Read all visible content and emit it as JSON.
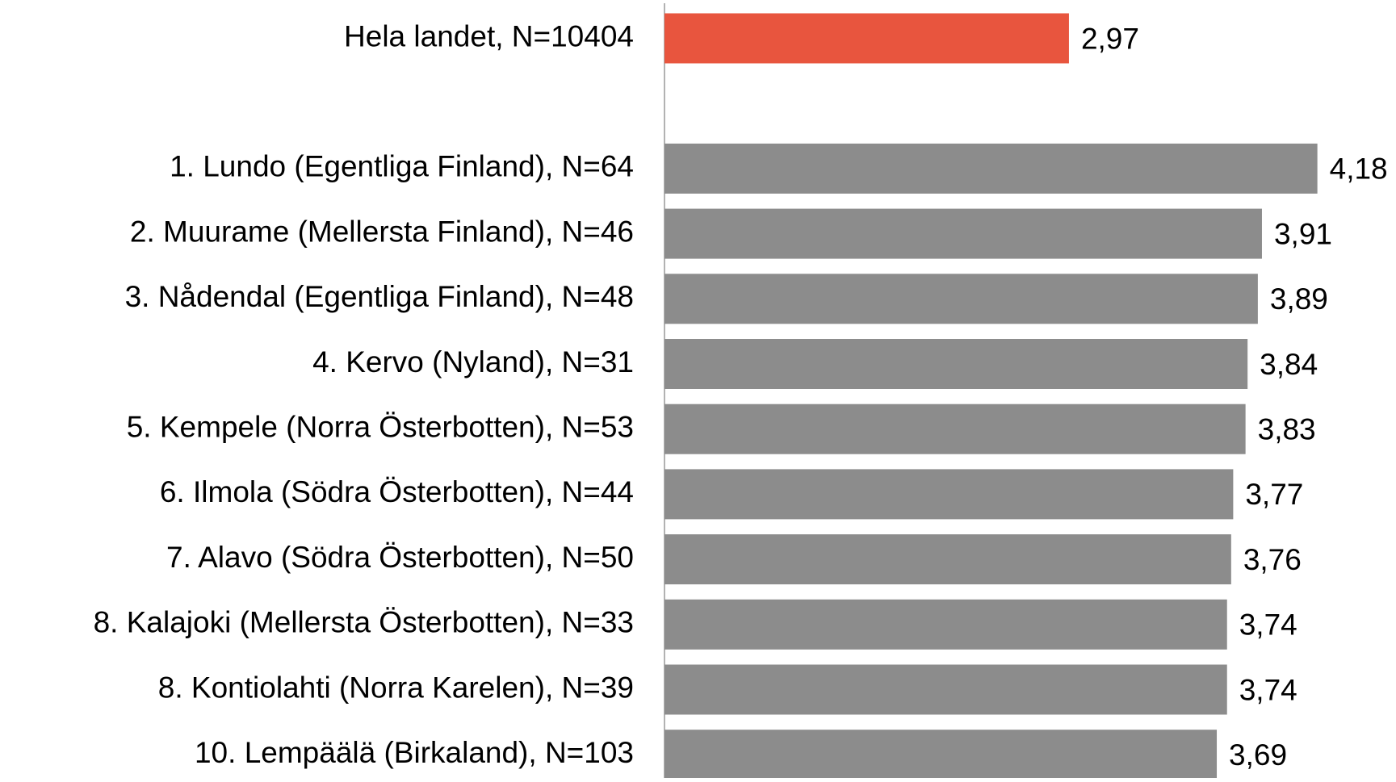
{
  "chart_data": {
    "type": "bar",
    "orientation": "horizontal",
    "categories": [
      "Hela landet, N=10404",
      null,
      "1. Lundo (Egentliga Finland), N=64",
      "2. Muurame (Mellersta Finland), N=46",
      "3. Nådendal (Egentliga Finland), N=48",
      "4. Kervo (Nyland), N=31",
      "5. Kempele (Norra Österbotten), N=53",
      "6. Ilmola (Södra Österbotten), N=44",
      "7. Alavo (Södra Österbotten), N=50",
      "8. Kalajoki (Mellersta Österbotten), N=33",
      "8. Kontiolahti (Norra Karelen), N=39",
      "10. Lempäälä (Birkaland), N=103"
    ],
    "values": [
      2.97,
      null,
      4.18,
      3.91,
      3.89,
      3.84,
      3.83,
      3.77,
      3.76,
      3.74,
      3.74,
      3.69
    ],
    "value_labels": [
      "2,97",
      null,
      "4,18",
      "3,91",
      "3,89",
      "3,84",
      "3,83",
      "3,77",
      "3,76",
      "3,74",
      "3,74",
      "3,69"
    ],
    "colors": [
      "#e8553e",
      null,
      "#8c8c8c",
      "#8c8c8c",
      "#8c8c8c",
      "#8c8c8c",
      "#8c8c8c",
      "#8c8c8c",
      "#8c8c8c",
      "#8c8c8c",
      "#8c8c8c",
      "#8c8c8c"
    ],
    "xlim": [
      1,
      4.5
    ]
  }
}
